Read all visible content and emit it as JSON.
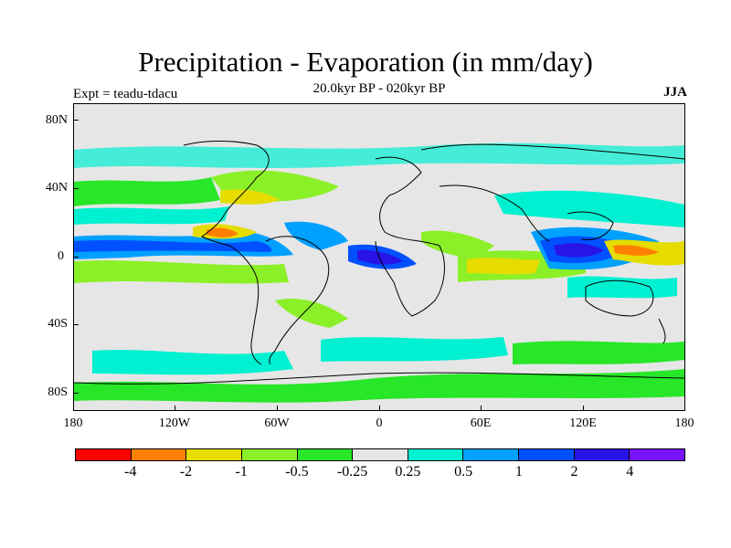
{
  "title": "Precipitation - Evaporation (in mm/day)",
  "subtitle": "20.0kyr BP - 020kyr BP",
  "expt": "Expt = teadu-tdacu",
  "season": "JJA",
  "lat_labels": [
    "80N",
    "40N",
    "0",
    "40S",
    "80S"
  ],
  "lon_labels": [
    "180",
    "120W",
    "60W",
    "0",
    "60E",
    "120E",
    "180"
  ],
  "colorbar": {
    "colors": [
      "#ff0000",
      "#ff8000",
      "#e6dc00",
      "#8cf028",
      "#28e628",
      "#e6e6e6",
      "#00f0d2",
      "#00a0ff",
      "#0050ff",
      "#2814e6",
      "#7814ff"
    ],
    "labels": [
      "-4",
      "-2",
      "-1",
      "-0.5",
      "-0.25",
      "0.25",
      "0.5",
      "1",
      "2",
      "4"
    ]
  }
}
